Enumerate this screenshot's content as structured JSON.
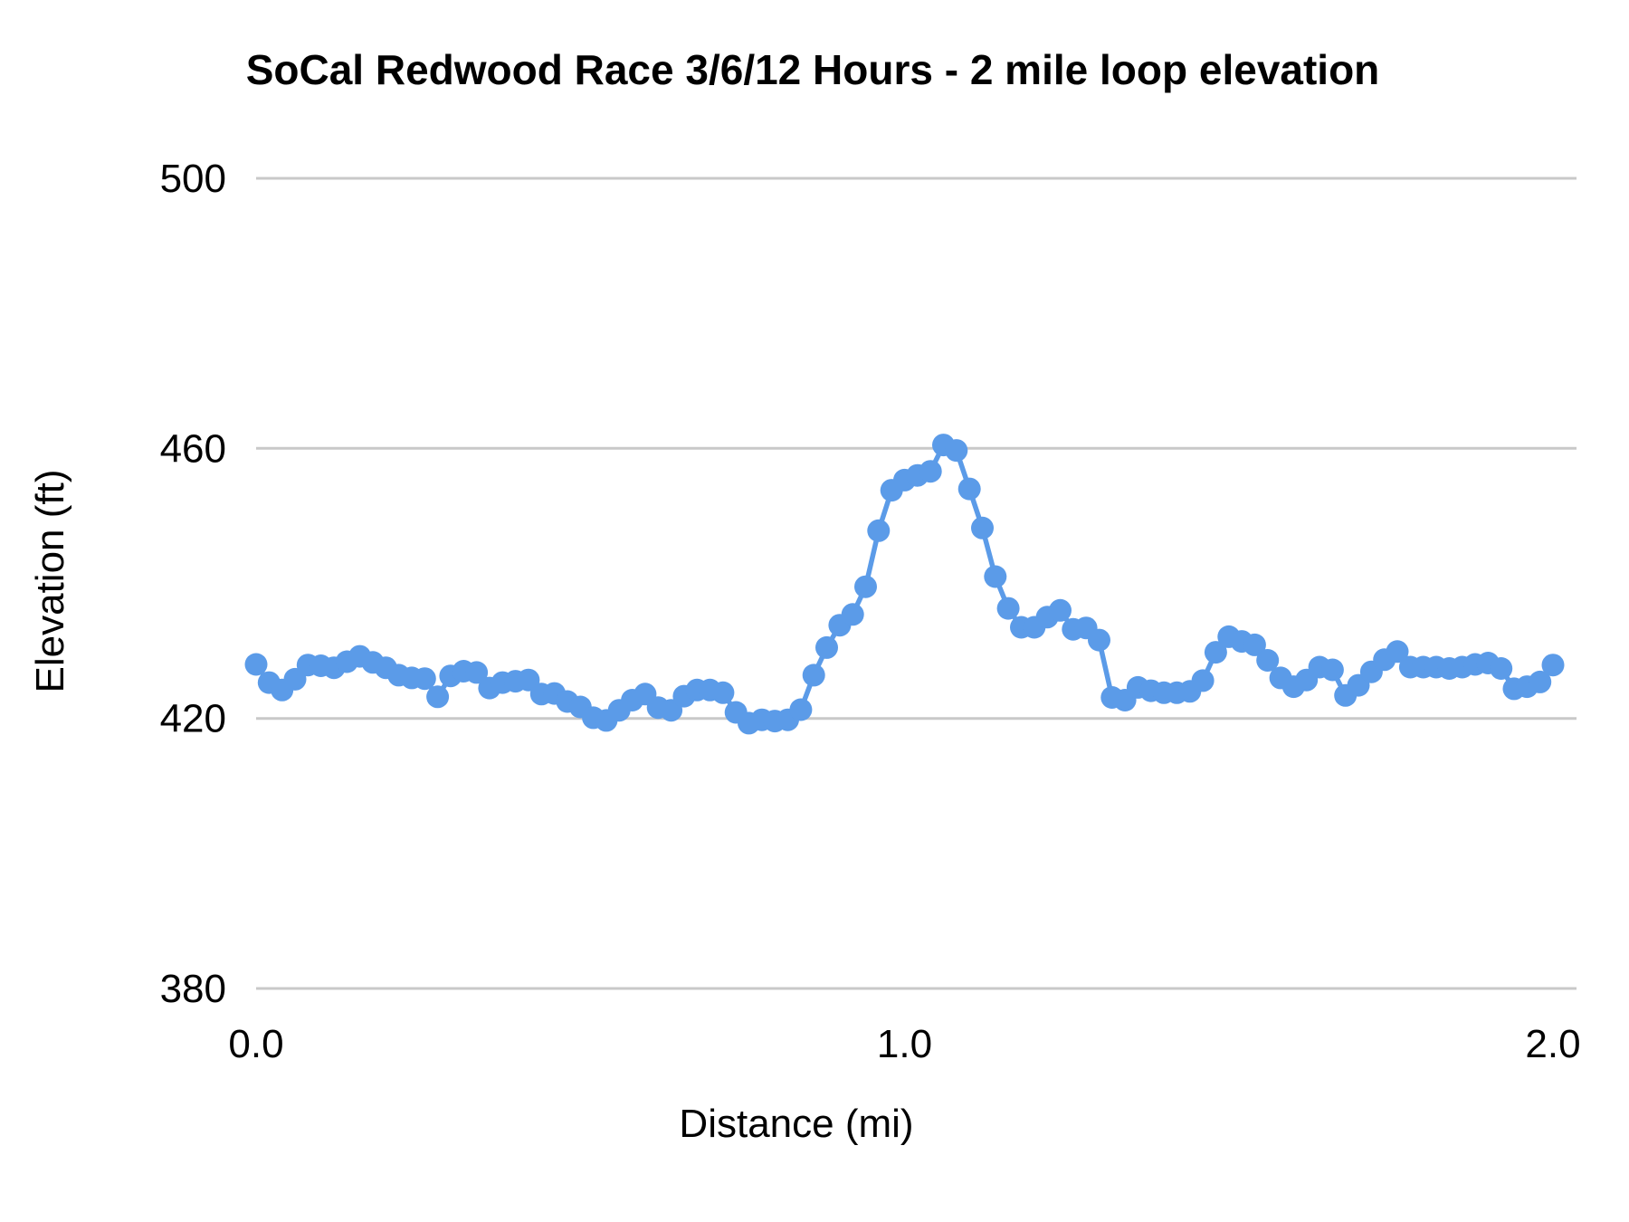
{
  "chart_data": {
    "type": "line",
    "title": "SoCal Redwood Race 3/6/12 Hours - 2 mile loop elevation",
    "xlabel": "Distance (mi)",
    "ylabel": "Elevation (ft)",
    "xlim": [
      0,
      2
    ],
    "ylim": [
      380,
      500
    ],
    "x_ticks": [
      0.0,
      1.0,
      2.0
    ],
    "x_tick_labels": [
      "0.0",
      "1.0",
      "2.0"
    ],
    "y_ticks": [
      500,
      460,
      420,
      380
    ],
    "y_tick_labels": [
      "500",
      "460",
      "420",
      "380"
    ],
    "grid": "horizontal-only",
    "legend": "none",
    "line_color": "#5B9BE8",
    "marker_color": "#5B9BE8",
    "grid_color": "#C9C9C9",
    "marker": "circle",
    "x": [
      0.0,
      0.02,
      0.04,
      0.06,
      0.08,
      0.1,
      0.12,
      0.14,
      0.16,
      0.18,
      0.2,
      0.22,
      0.24,
      0.26,
      0.28,
      0.3,
      0.32,
      0.34,
      0.36,
      0.38,
      0.4,
      0.42,
      0.44,
      0.46,
      0.48,
      0.5,
      0.52,
      0.54,
      0.56,
      0.58,
      0.6,
      0.62,
      0.64,
      0.66,
      0.68,
      0.7,
      0.72,
      0.74,
      0.76,
      0.78,
      0.8,
      0.82,
      0.84,
      0.86,
      0.88,
      0.9,
      0.92,
      0.94,
      0.96,
      0.98,
      1.0,
      1.02,
      1.04,
      1.06,
      1.08,
      1.1,
      1.12,
      1.14,
      1.16,
      1.18,
      1.2,
      1.22,
      1.24,
      1.26,
      1.28,
      1.3,
      1.32,
      1.34,
      1.36,
      1.38,
      1.4,
      1.42,
      1.44,
      1.46,
      1.48,
      1.5,
      1.52,
      1.54,
      1.56,
      1.58,
      1.6,
      1.62,
      1.64,
      1.66,
      1.68,
      1.7,
      1.72,
      1.74,
      1.76,
      1.78,
      1.8,
      1.82,
      1.84,
      1.86,
      1.88,
      1.9,
      1.92,
      1.94,
      1.96,
      1.98,
      2.0
    ],
    "y": [
      428.0,
      425.3,
      424.2,
      425.8,
      427.9,
      427.8,
      427.5,
      428.4,
      429.2,
      428.3,
      427.5,
      426.4,
      426.0,
      425.9,
      423.2,
      426.3,
      427.0,
      426.8,
      424.5,
      425.3,
      425.5,
      425.7,
      423.6,
      423.7,
      422.5,
      421.7,
      420.1,
      419.7,
      421.2,
      422.7,
      423.6,
      421.6,
      421.2,
      423.3,
      424.2,
      424.2,
      423.8,
      420.9,
      419.3,
      419.8,
      419.6,
      419.8,
      421.3,
      426.4,
      430.5,
      433.8,
      435.4,
      439.5,
      447.8,
      453.8,
      455.3,
      456.0,
      456.6,
      460.5,
      459.7,
      454.0,
      448.2,
      441.0,
      436.3,
      433.5,
      433.5,
      435.0,
      436.0,
      433.2,
      433.4,
      431.6,
      423.1,
      422.7,
      424.6,
      424.1,
      423.8,
      423.8,
      424.0,
      425.6,
      429.8,
      432.1,
      431.4,
      430.9,
      428.6,
      426.0,
      424.7,
      425.7,
      427.6,
      427.2,
      423.4,
      424.9,
      426.9,
      428.7,
      429.9,
      427.6,
      427.6,
      427.6,
      427.4,
      427.6,
      428.0,
      428.2,
      427.4,
      424.4,
      424.7,
      425.4,
      427.9
    ]
  }
}
